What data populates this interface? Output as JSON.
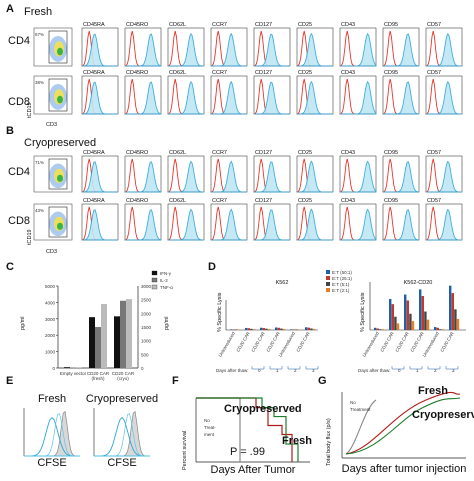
{
  "panels": {
    "A": {
      "label": "A",
      "condition": "Fresh",
      "rows": [
        {
          "name": "CD4",
          "gate_pct": "67%"
        },
        {
          "name": "CD8",
          "gate_pct": "38%"
        }
      ],
      "markers": [
        "CD45RA",
        "CD45RO",
        "CD62L",
        "CCR7",
        "CD127",
        "CD25",
        "CD43",
        "CD95",
        "CD57"
      ],
      "y_axis": "tCD19",
      "x_axis": "CD3"
    },
    "B": {
      "label": "B",
      "condition": "Cryopreserved",
      "rows": [
        {
          "name": "CD4",
          "gate_pct": "71%"
        },
        {
          "name": "CD8",
          "gate_pct": "43%"
        }
      ],
      "markers": [
        "CD45RA",
        "CD45RO",
        "CD62L",
        "CCR7",
        "CD127",
        "CD25",
        "CD43",
        "CD95",
        "CD57"
      ],
      "y_axis": "tCD19",
      "x_axis": "CD3"
    },
    "C": {
      "label": "C",
      "ylabel_left": "pg/ml",
      "ylabel_right": "pg/ml",
      "y_ticks": [
        "0",
        "1000",
        "2000",
        "3000",
        "4000",
        "5000"
      ],
      "y2_ticks": [
        "0",
        "500",
        "1000",
        "1500",
        "2000",
        "2500",
        "3000"
      ],
      "categories": [
        "Empty vector",
        "CD20 CAR (fresh)",
        "CD20 CAR (cryo)"
      ],
      "legend": [
        "IFN-γ",
        "IL-2",
        "TNF-α"
      ]
    },
    "D": {
      "label": "D",
      "title_left": "K562",
      "title_right": "K562-CD20",
      "ylabel": "% Specific Lysis",
      "xrow_label": "Days after thaw:",
      "days": [
        "0",
        "1",
        "2",
        "3"
      ],
      "legend": [
        "E:T (50:1)",
        "E:T (25:1)",
        "E:T (5:1)",
        "E:T (2:1)"
      ]
    },
    "E": {
      "label": "E",
      "titles": [
        "Fresh",
        "Cryopreserved"
      ],
      "xlabel": "CFSE"
    },
    "F": {
      "label": "F",
      "ylabel": "Percent survival",
      "xlabel": "Days After Tumor",
      "series": [
        "Cryopreserved",
        "Fresh"
      ],
      "no_treatment": [
        "No",
        "Treat-",
        "ment"
      ],
      "pval": "P = .99"
    },
    "G": {
      "label": "G",
      "ylabel": "Total body flux (p/s)",
      "xlabel": "Days after tumor injection",
      "series": [
        "Fresh",
        "Cryopreserved"
      ],
      "no_treatment": [
        "No",
        "Treatment"
      ]
    }
  },
  "chart_data": [
    {
      "type": "bar",
      "title": "",
      "categories": [
        "Empty vector",
        "CD20 CAR (fresh)",
        "CD20 CAR (cryo)"
      ],
      "series": [
        {
          "name": "IFN-γ",
          "values": [
            50,
            3100,
            3150
          ]
        },
        {
          "name": "IL-2",
          "values": [
            30,
            2500,
            4100
          ]
        },
        {
          "name": "TNF-α",
          "values": [
            20,
            3900,
            4200
          ]
        }
      ],
      "ylabel": "pg/ml",
      "ylim": [
        0,
        5000
      ]
    },
    {
      "type": "bar",
      "title": "K562-CD20",
      "categories": [
        "Untransduced",
        "CD20 CAR",
        "CD20 CAR",
        "CD20 CAR",
        "Untransduced",
        "CD20 CAR"
      ],
      "series": [
        {
          "name": "E:T (50:1)",
          "values": [
            3,
            42,
            48,
            55,
            4,
            60
          ]
        },
        {
          "name": "E:T (25:1)",
          "values": [
            2,
            35,
            40,
            46,
            3,
            50
          ]
        },
        {
          "name": "E:T (5:1)",
          "values": [
            1,
            18,
            22,
            25,
            1,
            28
          ]
        },
        {
          "name": "E:T (2:1)",
          "values": [
            1,
            9,
            12,
            14,
            1,
            15
          ]
        }
      ],
      "ylabel": "% Specific Lysis"
    }
  ],
  "colors": {
    "isotype": "#e8352b",
    "stain": "#2aa7d8",
    "stain_fill": "#bfe6f4",
    "bar_black": "#111111",
    "bar_mid": "#777777",
    "bar_light": "#bbbbbb",
    "fresh": "#b21a1a",
    "cryo": "#1e7d2c",
    "notreat": "#888888"
  }
}
